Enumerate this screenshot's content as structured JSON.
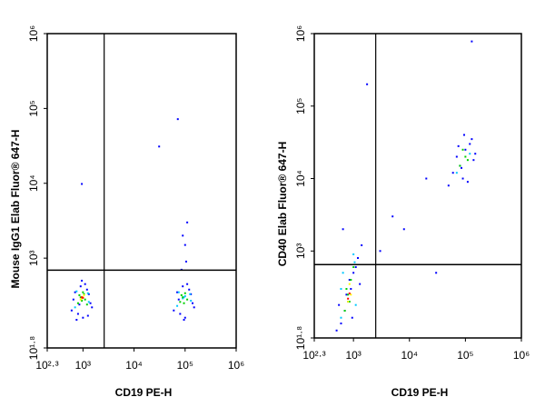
{
  "chart_data": [
    {
      "type": "scatter",
      "xlabel": "CD19 PE-H",
      "ylabel": "Mouse IgG1 Elab Fluor® 647-H",
      "xscale": "log",
      "yscale": "log",
      "xlim": [
        199.5,
        1000000
      ],
      "ylim": [
        63.1,
        1000000
      ],
      "xticks": [
        {
          "value": 199.5,
          "label": "10²·³"
        },
        {
          "value": 1000,
          "label": "10³"
        },
        {
          "value": 10000,
          "label": "10⁴"
        },
        {
          "value": 100000,
          "label": "10⁵"
        },
        {
          "value": 1000000,
          "label": "10⁶"
        }
      ],
      "yticks": [
        {
          "value": 63.1,
          "label": "10¹·⁸"
        },
        {
          "value": 1000,
          "label": "10³"
        },
        {
          "value": 10000,
          "label": "10⁴"
        },
        {
          "value": 100000,
          "label": "10⁵"
        },
        {
          "value": 1000000,
          "label": "10⁶"
        }
      ],
      "gate_x": 2600,
      "gate_y": 690,
      "series": [
        {
          "color": "#0000ff",
          "x": [
            600,
            700,
            800,
            900,
            1000,
            1200,
            1400,
            1500,
            1100,
            650,
            750,
            1300,
            950,
            850,
            1250,
            60000,
            70000,
            80000,
            90000,
            100000,
            120000,
            140000,
            150000,
            110000,
            75000,
            95000,
            130000,
            85000,
            105000,
            100000,
            90000,
            110000,
            950,
            72000,
            31000
          ],
          "y": [
            200,
            350,
            180,
            420,
            160,
            380,
            250,
            220,
            450,
            280,
            150,
            330,
            500,
            240,
            170,
            200,
            350,
            180,
            420,
            160,
            380,
            250,
            220,
            450,
            280,
            150,
            330,
            700,
            900,
            1500,
            2000,
            3000,
            9800,
            72000,
            31000
          ]
        },
        {
          "color": "#00c8ff",
          "x": [
            700,
            1300,
            750,
            1250,
            70000,
            130000,
            75000,
            125000,
            90000,
            100000,
            95000
          ],
          "y": [
            220,
            260,
            360,
            340,
            230,
            270,
            350,
            330,
            290,
            310,
            300
          ]
        },
        {
          "color": "#00d000",
          "x": [
            800,
            900,
            1000,
            1100,
            1200,
            850,
            950,
            1050,
            80000,
            90000,
            100000,
            110000,
            85000,
            95000
          ],
          "y": [
            250,
            300,
            350,
            280,
            240,
            320,
            270,
            330,
            260,
            300,
            340,
            280,
            320,
            250
          ]
        },
        {
          "color": "#ffff00",
          "x": [
            900,
            1000,
            1050,
            950
          ],
          "y": [
            280,
            300,
            320,
            290
          ]
        },
        {
          "color": "#ff0000",
          "x": [
            950,
            1000
          ],
          "y": [
            300,
            295
          ]
        }
      ]
    },
    {
      "type": "scatter",
      "xlabel": "CD19 PE-H",
      "ylabel": "CD40 Elab Fluor® 647-H",
      "xscale": "log",
      "yscale": "log",
      "xlim": [
        199.5,
        1000000
      ],
      "ylim": [
        63.1,
        1000000
      ],
      "xticks": [
        {
          "value": 199.5,
          "label": "10²·³"
        },
        {
          "value": 1000,
          "label": "10³"
        },
        {
          "value": 10000,
          "label": "10⁴"
        },
        {
          "value": 100000,
          "label": "10⁵"
        },
        {
          "value": 1000000,
          "label": "10⁶"
        }
      ],
      "yticks": [
        {
          "value": 63.1,
          "label": "10¹·⁸"
        },
        {
          "value": 1000,
          "label": "10³"
        },
        {
          "value": 10000,
          "label": "10⁴"
        },
        {
          "value": 100000,
          "label": "10⁵"
        },
        {
          "value": 1000000,
          "label": "10⁶"
        }
      ],
      "gate_x": 2500,
      "gate_y": 650,
      "series": [
        {
          "color": "#0000ff",
          "x": [
            500,
            600,
            700,
            800,
            900,
            1000,
            1200,
            1400,
            650,
            750,
            850,
            950,
            1100,
            550,
            1300,
            3000,
            5000,
            20000,
            30000,
            8000,
            50000,
            60000,
            70000,
            80000,
            100000,
            120000,
            140000,
            150000,
            90000,
            110000,
            130000,
            75000,
            85000,
            95000,
            130000,
            1750
          ],
          "y": [
            80,
            100,
            150,
            200,
            300,
            500,
            800,
            1200,
            2000,
            250,
            400,
            120,
            600,
            180,
            350,
            1000,
            3000,
            10000,
            500,
            2000,
            8000,
            12000,
            20000,
            15000,
            25000,
            30000,
            18000,
            22000,
            10000,
            9000,
            35000,
            28000,
            14000,
            40000,
            780000,
            200000
          ]
        },
        {
          "color": "#00c8ff",
          "x": [
            600,
            1100,
            650,
            1050,
            70000,
            120000,
            600,
            1000
          ],
          "y": [
            120,
            180,
            500,
            700,
            12000,
            22000,
            300,
            900
          ]
        },
        {
          "color": "#00d000",
          "x": [
            700,
            800,
            900,
            1000,
            750,
            850,
            80000,
            100000,
            110000,
            90000
          ],
          "y": [
            150,
            250,
            400,
            600,
            300,
            200,
            15000,
            20000,
            18000,
            25000
          ]
        },
        {
          "color": "#ffff00",
          "x": [
            800,
            850,
            900
          ],
          "y": [
            200,
            350,
            250
          ]
        },
        {
          "color": "#ff0000",
          "x": [
            800,
            850
          ],
          "y": [
            220,
            260
          ]
        }
      ]
    }
  ]
}
